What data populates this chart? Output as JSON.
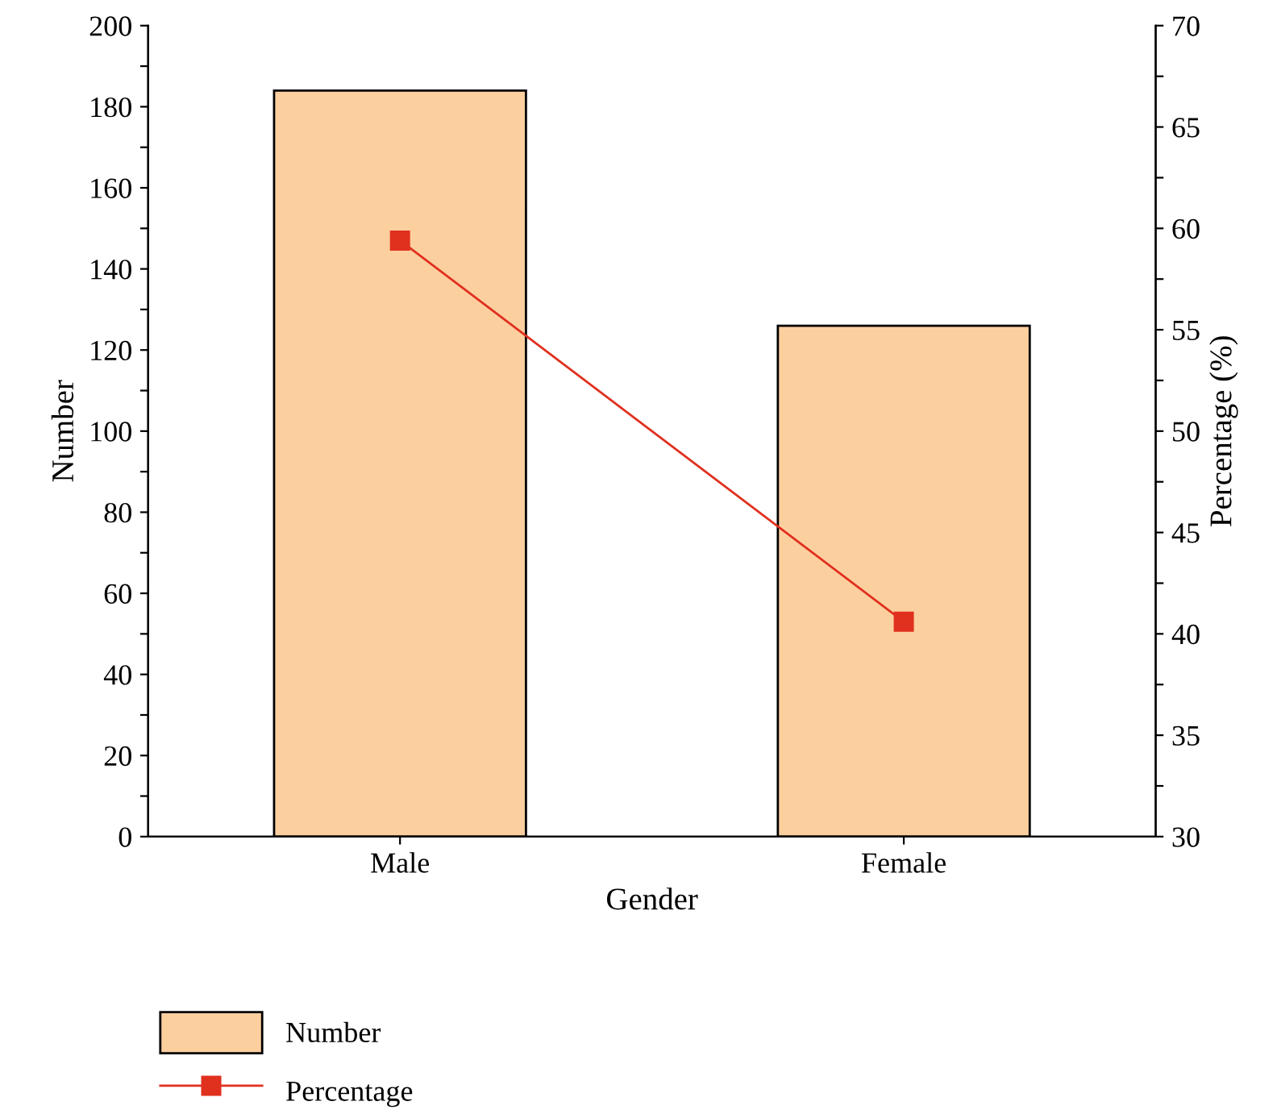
{
  "chart_data": {
    "type": "bar",
    "categories": [
      "Male",
      "Female"
    ],
    "xlabel": "Gender",
    "ylabel": "Number",
    "y2label": "Percentage (%)",
    "series": [
      {
        "name": "Number",
        "color": "#fccf9f",
        "values": [
          184,
          126
        ]
      },
      {
        "name": "Percentage",
        "type": "line",
        "axis": "y2",
        "color": "#e0301e",
        "marker": "square",
        "line_style": "solid",
        "values": [
          59.4,
          40.6
        ]
      }
    ],
    "ylim": [
      0,
      200
    ],
    "yticks": [
      0,
      {
        "value": 10,
        "label": null
      },
      20,
      {
        "value": 30,
        "label": null
      },
      40,
      {
        "value": 50,
        "label": null
      },
      60,
      {
        "value": 70,
        "label": null
      },
      80,
      {
        "value": 90,
        "label": null
      },
      100,
      {
        "value": 110,
        "label": null
      },
      120,
      {
        "value": 130,
        "label": null
      },
      140,
      {
        "value": 150,
        "label": null
      },
      160,
      {
        "value": 170,
        "label": null
      },
      180,
      {
        "value": 190,
        "label": null
      },
      200
    ],
    "y2lim": [
      30,
      70
    ],
    "y2ticks": [
      30,
      {
        "value": 32.5,
        "label": null
      },
      35,
      {
        "value": 37.5,
        "label": null
      },
      40,
      {
        "value": 42.5,
        "label": null
      },
      45,
      {
        "value": 47.5,
        "label": null
      },
      50,
      {
        "value": 52.5,
        "label": null
      },
      55,
      {
        "value": 57.5,
        "label": null
      },
      60,
      {
        "value": 62.5,
        "label": null
      },
      65,
      {
        "value": 67.5,
        "label": null
      },
      70
    ],
    "grid": false,
    "legend": "bottom left"
  }
}
